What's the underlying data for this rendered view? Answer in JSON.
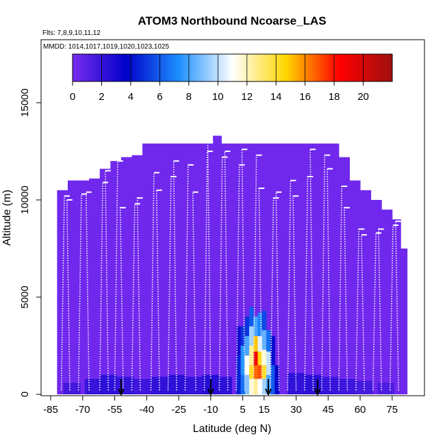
{
  "chart_data": {
    "type": "heatmap",
    "title": "ATOM3 Northbound Ncoarse_LAS",
    "flights_label": "Flts: 7,8,9,10,11,12",
    "dates_label": "MMDD: 1014,1017,1019,1020,1023,1025",
    "xlabel": "Latitude (deg N)",
    "ylabel": "Altitude (m)",
    "xlim": [
      -85,
      85
    ],
    "ylim": [
      0,
      17500
    ],
    "x_ticks": [
      -85,
      -70,
      -55,
      -40,
      -25,
      -10,
      5,
      15,
      30,
      45,
      60,
      75
    ],
    "y_ticks": [
      0,
      5000,
      10000,
      15000
    ],
    "colorbar": {
      "min": 0,
      "max": 22,
      "ticks": [
        0,
        2,
        4,
        6,
        8,
        10,
        12,
        14,
        16,
        18,
        20
      ],
      "colors": [
        "#7b2cf0",
        "#0000c8",
        "#1e90ff",
        "#ffffff",
        "#ffd700",
        "#ff0000",
        "#a01010"
      ]
    },
    "background_value": 0.3,
    "ceiling_profile": [
      [
        -82,
        10500
      ],
      [
        -77,
        11000
      ],
      [
        -72,
        11000
      ],
      [
        -67,
        11100
      ],
      [
        -62,
        11600
      ],
      [
        -57,
        12000
      ],
      [
        -52,
        12200
      ],
      [
        -47,
        12300
      ],
      [
        -42,
        12900
      ],
      [
        -37,
        12900
      ],
      [
        -32,
        12900
      ],
      [
        -27,
        12900
      ],
      [
        -22,
        12900
      ],
      [
        -17,
        12900
      ],
      [
        -12,
        12900
      ],
      [
        -9,
        13300
      ],
      [
        -5,
        12900
      ],
      [
        0,
        12900
      ],
      [
        5,
        12900
      ],
      [
        10,
        12900
      ],
      [
        15,
        12900
      ],
      [
        20,
        12900
      ],
      [
        25,
        12900
      ],
      [
        30,
        12900
      ],
      [
        35,
        12900
      ],
      [
        40,
        12900
      ],
      [
        45,
        12900
      ],
      [
        50,
        12200
      ],
      [
        55,
        11000
      ],
      [
        60,
        10500
      ],
      [
        65,
        10000
      ],
      [
        70,
        9500
      ],
      [
        75,
        9000
      ],
      [
        79,
        7500
      ]
    ],
    "boundary_layer": [
      [
        -75,
        600,
        1.8
      ],
      [
        -65,
        800,
        2.2
      ],
      [
        -58,
        1000,
        2.5
      ],
      [
        -50,
        900,
        2.3
      ],
      [
        -42,
        800,
        2.0
      ],
      [
        -34,
        900,
        2.4
      ],
      [
        -26,
        1000,
        2.6
      ],
      [
        -18,
        900,
        2.3
      ],
      [
        -10,
        1000,
        2.8
      ],
      [
        -4,
        900,
        2.5
      ],
      [
        30,
        1100,
        2.4
      ],
      [
        38,
        1000,
        2.6
      ],
      [
        46,
        900,
        2.2
      ],
      [
        54,
        800,
        2.0
      ],
      [
        62,
        700,
        1.7
      ],
      [
        72,
        600,
        1.5
      ]
    ],
    "plume": [
      [
        3,
        0,
        2000,
        4.5
      ],
      [
        3,
        2000,
        3500,
        3.0
      ],
      [
        5,
        0,
        1000,
        6.5
      ],
      [
        5,
        1000,
        2500,
        7.5
      ],
      [
        5,
        2500,
        3500,
        5.0
      ],
      [
        7,
        0,
        1000,
        9.0
      ],
      [
        7,
        1000,
        2000,
        11.0
      ],
      [
        7,
        2000,
        3000,
        8.0
      ],
      [
        7,
        3000,
        4000,
        5.0
      ],
      [
        9,
        0,
        800,
        11.5
      ],
      [
        9,
        800,
        1500,
        14.0
      ],
      [
        9,
        1500,
        2500,
        12.5
      ],
      [
        9,
        2500,
        3500,
        9.5
      ],
      [
        9,
        3500,
        4500,
        6.0
      ],
      [
        11,
        0,
        800,
        12.5
      ],
      [
        11,
        800,
        1500,
        16.5
      ],
      [
        11,
        1500,
        2200,
        19.0
      ],
      [
        11,
        2200,
        3000,
        15.0
      ],
      [
        11,
        3000,
        4000,
        8.0
      ],
      [
        13,
        0,
        800,
        11.0
      ],
      [
        13,
        800,
        1500,
        17.0
      ],
      [
        13,
        1500,
        2200,
        14.5
      ],
      [
        13,
        2200,
        3000,
        10.5
      ],
      [
        13,
        3000,
        4200,
        7.0
      ],
      [
        15,
        0,
        800,
        9.5
      ],
      [
        15,
        800,
        1500,
        14.0
      ],
      [
        15,
        1500,
        2300,
        11.5
      ],
      [
        15,
        2300,
        3300,
        8.5
      ],
      [
        15,
        3300,
        4300,
        5.5
      ],
      [
        17,
        0,
        1000,
        8.0
      ],
      [
        17,
        1000,
        2200,
        10.0
      ],
      [
        17,
        2200,
        3300,
        6.5
      ],
      [
        19,
        0,
        1500,
        6.0
      ],
      [
        19,
        1500,
        3000,
        4.0
      ],
      [
        21,
        0,
        1500,
        3.5
      ]
    ],
    "profiles": [
      [
        -80,
        10200
      ],
      [
        -76,
        10000
      ],
      [
        -72,
        10300
      ],
      [
        -67,
        10400
      ],
      [
        -62,
        10900
      ],
      [
        -58,
        11500
      ],
      [
        -55,
        12000
      ],
      [
        -51,
        9600
      ],
      [
        -47,
        9800
      ],
      [
        -43,
        10100
      ],
      [
        -38,
        11400
      ],
      [
        -34,
        10500
      ],
      [
        -30,
        11200
      ],
      [
        -26,
        12000
      ],
      [
        -22,
        11800
      ],
      [
        -17,
        10400
      ],
      [
        -13,
        12500
      ],
      [
        -10,
        13000
      ],
      [
        -6,
        12200
      ],
      [
        -2,
        12500
      ],
      [
        2,
        11800
      ],
      [
        6,
        12600
      ],
      [
        10,
        12300
      ],
      [
        14,
        10600
      ],
      [
        18,
        10100
      ],
      [
        22,
        10400
      ],
      [
        26,
        11000
      ],
      [
        30,
        10200
      ],
      [
        34,
        11200
      ],
      [
        38,
        12600
      ],
      [
        42,
        12300
      ],
      [
        46,
        11600
      ],
      [
        50,
        10700
      ],
      [
        54,
        9600
      ],
      [
        58,
        8500
      ],
      [
        62,
        8200
      ],
      [
        66,
        8300
      ],
      [
        70,
        8500
      ],
      [
        74,
        8700
      ],
      [
        78,
        8900
      ]
    ],
    "markers": [
      -52,
      -10,
      17,
      40
    ]
  }
}
